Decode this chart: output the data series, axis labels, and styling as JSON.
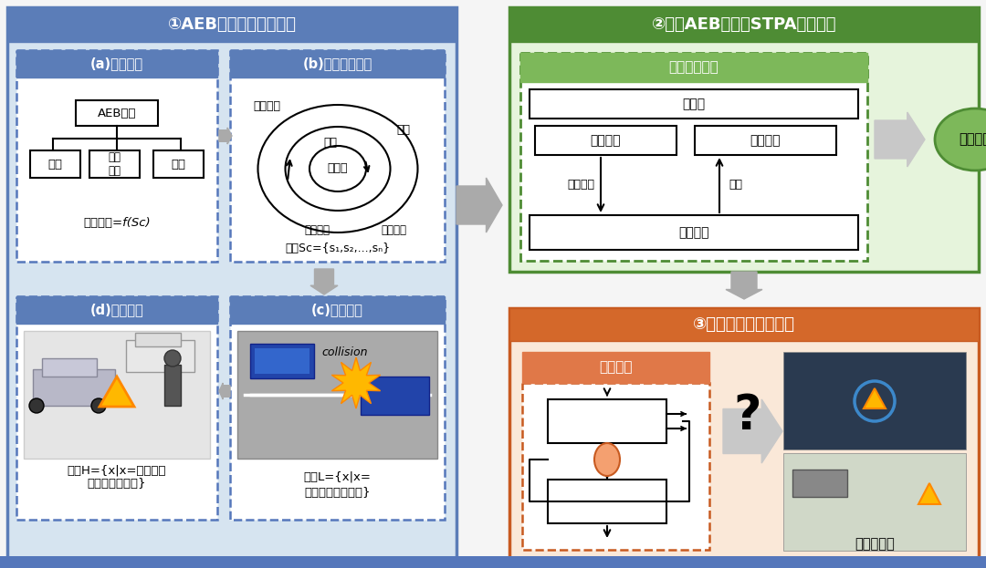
{
  "title1": "①AEB系统分析目的定义",
  "title2": "②建立AEB系统的STPA控制结构",
  "title3": "③识别不安全控制动作",
  "label_a": "(a)功能定义",
  "label_b": "(b)运动场景定义",
  "label_c": "(c)损失定义",
  "label_d": "(d)危害定义",
  "aeb": "AEB系统",
  "fangzhuang": "防撞",
  "jianqing": "减轻\n碰撞",
  "qita": "其他",
  "func_def": "定义功能=f(Sᴄ)",
  "yunxing": "运行场景",
  "huanjing": "环境",
  "xitong": "系统",
  "zixitong": "子系统",
  "shuchu": "系统输出",
  "shuru": "系统输入",
  "sc_def": "定义Sᴄ={s₁,s₂,...,sₙ}",
  "collision": "collision",
  "l_def1": "定义L={x|x=",
  "l_def2": "不可能接受的结果}",
  "h_def": "定义H={x|x=可能导致\n损失的系统状态}",
  "tongyong": "通用控制回路",
  "kongzhiqi": "控制器",
  "suanfa": "控制算法",
  "guocheng_moxing": "过程模型",
  "kongzhi_dongzuo": "控制动作",
  "fankui": "反馈",
  "kongzhi_guocheng": "控制过程",
  "buduan": "不断细化",
  "kongzhi_dongzuo2": "控制动作",
  "xitong_weihai": "系统级危害",
  "blue_dark": "#5B7DB8",
  "blue_header": "#6688BB",
  "blue_fill": "#D6E4F0",
  "green_dark": "#4E8C34",
  "green_header": "#5A9E3C",
  "green_fill": "#E6F4DC",
  "green_bar": "#7DB85A",
  "orange_dark": "#C85A20",
  "orange_header": "#D4682A",
  "orange_fill": "#FAE8D8",
  "orange_bar": "#E07848",
  "white": "#FFFFFF",
  "black": "#000000",
  "gray_arrow": "#AAAAAA",
  "gray_light": "#C8C8C8",
  "dashed_blue": "#5577BB"
}
